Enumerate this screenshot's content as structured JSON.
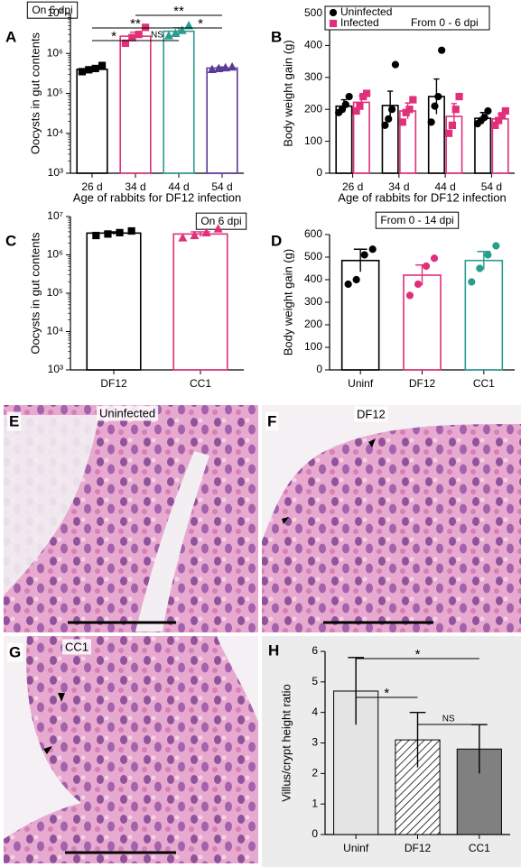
{
  "chart_data": [
    {
      "type": "bar",
      "panel": "A",
      "title": "On 6 dpi",
      "ylabel": "Oocysts in gut contents",
      "xlabel": "Age of rabbits for DF12 infection",
      "log_scale": true,
      "categories": [
        "26 d",
        "34 d",
        "44 d",
        "54 d"
      ],
      "values": [
        400000,
        2700000,
        3600000,
        430000
      ],
      "errors": [
        60000,
        700000,
        800000,
        30000
      ],
      "points": [
        [
          350000,
          390000,
          420000,
          500000
        ],
        [
          1800000,
          2500000,
          3000000,
          4500000
        ],
        [
          2800000,
          3200000,
          3800000,
          5000000
        ],
        [
          400000,
          420000,
          440000,
          460000
        ]
      ],
      "colors": [
        "#000000",
        "#e0307a",
        "#2a9d8f",
        "#5b3a99"
      ],
      "markers": [
        "square",
        "square",
        "triangle",
        "triangle"
      ],
      "ylim": [
        1000,
        10000000
      ],
      "yticks": [
        {
          "value": 1000,
          "label": "10³"
        },
        {
          "value": 10000,
          "label": "10⁴"
        },
        {
          "value": 100000,
          "label": "10⁵"
        },
        {
          "value": 1000000,
          "label": "10⁶"
        },
        {
          "value": 10000000,
          "label": "10⁷"
        }
      ],
      "brackets": [
        {
          "text": "**",
          "between": [
            "34 d",
            "54 d"
          ]
        },
        {
          "text": "**",
          "between": [
            "26 d",
            "44 d"
          ]
        },
        {
          "text": "*",
          "between": [
            "44 d",
            "54 d"
          ]
        },
        {
          "text": "*",
          "between": [
            "26 d",
            "34 d"
          ]
        },
        {
          "text": "NS",
          "between": [
            "34 d",
            "44 d"
          ]
        }
      ]
    },
    {
      "type": "grouped_bar",
      "panel": "B",
      "annotation": "From 0 - 6 dpi",
      "ylabel": "Body weight gain (g)",
      "xlabel": "Age of rabbits for DF12 infection",
      "categories": [
        "26 d",
        "34 d",
        "44 d",
        "54 d"
      ],
      "legend_position": "top",
      "series": [
        {
          "name": "Uninfected",
          "color": "#000000",
          "marker": "circle",
          "values": [
            210,
            212,
            240,
            172
          ],
          "errors": [
            20,
            45,
            55,
            18
          ],
          "points": [
            [
              190,
              200,
              215,
              240
            ],
            [
              150,
              170,
              200,
              340
            ],
            [
              160,
              210,
              240,
              385
            ],
            [
              155,
              165,
              175,
              195
            ]
          ]
        },
        {
          "name": "Infected",
          "color": "#e0307a",
          "marker": "square",
          "values": [
            222,
            195,
            178,
            170
          ],
          "errors": [
            20,
            25,
            40,
            15
          ],
          "points": [
            [
              195,
              210,
              240,
              250
            ],
            [
              160,
              190,
              200,
              230
            ],
            [
              125,
              150,
              200,
              240
            ],
            [
              150,
              165,
              180,
              195
            ]
          ]
        }
      ],
      "ylim": [
        0,
        500
      ],
      "yticks": [
        0,
        100,
        200,
        300,
        400,
        500
      ]
    },
    {
      "type": "bar",
      "panel": "C",
      "title": "On 6 dpi",
      "ylabel": "Oocysts in gut contents",
      "log_scale": true,
      "categories": [
        "DF12",
        "CC1"
      ],
      "values": [
        3700000,
        3500000
      ],
      "errors": [
        300000,
        500000
      ],
      "points": [
        [
          3200000,
          3500000,
          3800000,
          4200000
        ],
        [
          2800000,
          3200000,
          3800000,
          4800000
        ]
      ],
      "colors": [
        "#000000",
        "#e0307a"
      ],
      "markers": [
        "square",
        "triangle"
      ],
      "ylim": [
        1000,
        10000000
      ],
      "yticks": [
        {
          "value": 1000,
          "label": "10³"
        },
        {
          "value": 10000,
          "label": "10⁴"
        },
        {
          "value": 100000,
          "label": "10⁵"
        },
        {
          "value": 1000000,
          "label": "10⁶"
        },
        {
          "value": 10000000,
          "label": "10⁷"
        }
      ]
    },
    {
      "type": "bar",
      "panel": "D",
      "title": "From 0 - 14 dpi",
      "ylabel": "Body weight gain (g)",
      "categories": [
        "Uninf",
        "DF12",
        "CC1"
      ],
      "values": [
        485,
        420,
        485
      ],
      "errors": [
        50,
        45,
        40
      ],
      "points": [
        [
          380,
          400,
          510,
          535
        ],
        [
          330,
          380,
          460,
          495
        ],
        [
          390,
          450,
          510,
          550
        ]
      ],
      "colors": [
        "#000000",
        "#e0307a",
        "#2a9d8f"
      ],
      "markers": [
        "circle",
        "circle",
        "circle"
      ],
      "ylim": [
        0,
        600
      ],
      "yticks": [
        0,
        100,
        200,
        300,
        400,
        500,
        600
      ]
    },
    {
      "type": "filled_bar",
      "panel": "H",
      "ylabel": "Villus/crypt height ratio",
      "categories": [
        "Uninf",
        "DF12",
        "CC1"
      ],
      "values": [
        4.7,
        3.1,
        2.8
      ],
      "errors": [
        1.1,
        0.9,
        0.8
      ],
      "fills": [
        "#e4e4e4",
        "hatch",
        "#808080"
      ],
      "ylim": [
        0,
        6
      ],
      "yticks": [
        0,
        1,
        2,
        3,
        4,
        5,
        6
      ],
      "brackets": [
        {
          "text": "*",
          "between": [
            "Uninf",
            "CC1"
          ]
        },
        {
          "text": "*",
          "between": [
            "Uninf",
            "DF12"
          ]
        },
        {
          "text": "NS",
          "between": [
            "DF12",
            "CC1"
          ]
        }
      ]
    }
  ],
  "images": [
    {
      "panel": "E",
      "label": "Uninfected"
    },
    {
      "panel": "F",
      "label": "DF12"
    },
    {
      "panel": "G",
      "label": "CC1"
    }
  ]
}
